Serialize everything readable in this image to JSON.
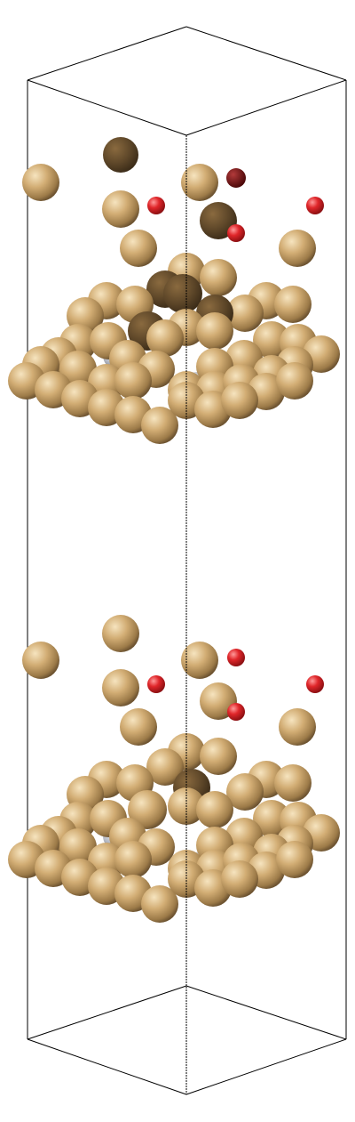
{
  "colors": {
    "background": "#ffffff",
    "cell_edge": "#000000",
    "gold_atom": "#c9a46a",
    "gold_atom_highlight": "#f4e0b8",
    "gold_atom_shadow": "#5a4428",
    "oxygen_atom": "#e0262a",
    "oxygen_atom_shadow": "#7a0e10",
    "metal_atom": "#b8bcc6"
  },
  "legend": [],
  "atom_types": [
    "gold-atom",
    "oxygen-atom",
    "metal-atom"
  ]
}
